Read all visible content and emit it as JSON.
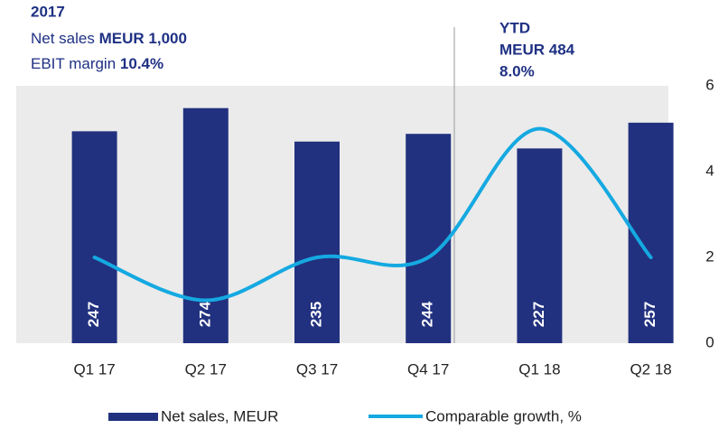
{
  "chart_data": {
    "type": "bar_line",
    "annotations": {
      "year": "2017",
      "lines": [
        {
          "label": "Net sales",
          "value": "MEUR 1,000"
        },
        {
          "label": "EBIT margin",
          "value": "10.4%"
        }
      ],
      "ytd": [
        "YTD",
        "MEUR 484",
        "8.0%"
      ]
    },
    "categories": [
      "Q1 17",
      "Q2 17",
      "Q3 17",
      "Q4 17",
      "Q1 18",
      "Q2 18"
    ],
    "series": [
      {
        "name": "Net sales, MEUR",
        "color": "#22317f",
        "type": "bar",
        "values": [
          247,
          274,
          235,
          244,
          227,
          257
        ]
      },
      {
        "name": "Comparable growth, %",
        "color": "#15a9e1",
        "type": "line",
        "axis": "y2",
        "values": [
          2,
          1,
          2,
          2,
          5,
          2
        ]
      }
    ],
    "ylim": [
      0,
      300
    ],
    "y2lim": [
      0,
      6
    ],
    "y2ticks": [
      0,
      2,
      4,
      6
    ]
  }
}
